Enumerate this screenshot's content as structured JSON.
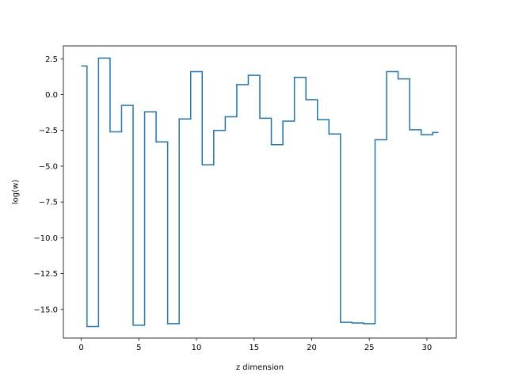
{
  "chart_data": {
    "type": "line",
    "drawstyle": "steps-mid",
    "title": "",
    "xlabel": "z dimension",
    "ylabel": "log(w)",
    "xlim": [
      -1.55,
      32.55
    ],
    "ylim": [
      -17.0,
      3.4
    ],
    "xticks": [
      0,
      5,
      10,
      15,
      20,
      25,
      30
    ],
    "xtick_labels": [
      "0",
      "5",
      "10",
      "15",
      "20",
      "25",
      "30"
    ],
    "yticks": [
      2.5,
      0.0,
      -2.5,
      -5.0,
      -7.5,
      -10.0,
      -12.5,
      -15.0
    ],
    "ytick_labels": [
      "2.5",
      "0.0",
      "−2.5",
      "−5.0",
      "−7.5",
      "−10.0",
      "−12.5",
      "−15.0"
    ],
    "grid": false,
    "series": [
      {
        "color": "#1f77b4",
        "x": [
          0,
          1,
          2,
          3,
          4,
          5,
          6,
          7,
          8,
          9,
          10,
          11,
          12,
          13,
          14,
          15,
          16,
          17,
          18,
          19,
          20,
          21,
          22,
          23,
          24,
          25,
          26,
          27,
          28,
          29,
          30,
          31
        ],
        "values": [
          2.0,
          -16.2,
          2.55,
          -2.6,
          -0.75,
          -16.1,
          -1.2,
          -3.3,
          -16.0,
          -1.7,
          1.6,
          -4.9,
          -2.5,
          -1.55,
          0.7,
          1.35,
          -1.65,
          -3.5,
          -1.85,
          1.2,
          -0.35,
          -1.75,
          -2.75,
          -15.9,
          -15.95,
          -16.0,
          -3.15,
          1.6,
          1.1,
          -2.45,
          -2.8,
          -2.65
        ]
      }
    ]
  }
}
